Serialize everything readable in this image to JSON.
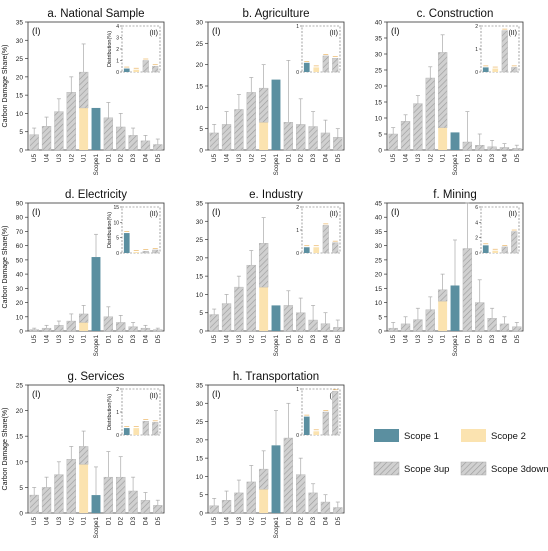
{
  "legend": {
    "items": [
      {
        "key": "scope1",
        "label": "Scope 1",
        "fill": "#5b8fa0",
        "hatched": false
      },
      {
        "key": "scope2",
        "label": "Scope 2",
        "fill": "#fbe3b0",
        "hatched": false
      },
      {
        "key": "scope3up",
        "label": "Scope 3up",
        "fill": "#d0d0d0",
        "hatched": true
      },
      {
        "key": "scope3down",
        "label": "Scope 3down",
        "fill": "#d0d0d0",
        "hatched": true
      }
    ]
  },
  "colors": {
    "scope1": "#5b8fa0",
    "scope2": "#fbe3b0",
    "scope3": "#d0d0d0",
    "hatch": "#9a9a9a",
    "error_bar": "#aaaaaa",
    "axis": "#333333"
  },
  "chart_data": [
    {
      "type": "bar",
      "title": "a. National Sample",
      "panel_label": "(I)",
      "ylabel": "Carbon Damage  Share(%)",
      "ylim": [
        0,
        35
      ],
      "yticks": [
        0,
        5,
        10,
        15,
        20,
        25,
        30,
        35
      ],
      "categories": [
        "U5",
        "U4",
        "U3",
        "U2",
        "U1",
        "Scope1",
        "D1",
        "D2",
        "D3",
        "D4",
        "D5"
      ],
      "series": [
        {
          "name": "Scope 1",
          "values": [
            0,
            0,
            0,
            0,
            0,
            11.5,
            0,
            0,
            0,
            0,
            0
          ]
        },
        {
          "name": "Scope 2",
          "values": [
            0,
            0,
            0,
            0,
            11.5,
            0,
            0,
            0,
            0,
            0,
            0
          ]
        },
        {
          "name": "Scope 3up",
          "values": [
            4.2,
            6.5,
            10.5,
            15.8,
            9.8,
            0,
            0,
            0,
            0,
            0,
            0
          ]
        },
        {
          "name": "Scope 3down",
          "values": [
            0,
            0,
            0,
            0,
            0,
            0,
            8.8,
            6.3,
            4.0,
            2.5,
            1.5
          ]
        }
      ],
      "error_upper": [
        6,
        9,
        14,
        20,
        29,
        0,
        13,
        10,
        6,
        4,
        3
      ],
      "inset": {
        "label": "(II)",
        "ylabel": "Distribution(%)",
        "ylim": [
          0,
          4
        ],
        "yticks": [
          0,
          1,
          2,
          3,
          4
        ],
        "categories": [
          "Scope 1",
          "Scope 2",
          "Scope 3up",
          "Scope 3down"
        ],
        "values": [
          0.3,
          0.2,
          1.0,
          0.5
        ]
      }
    },
    {
      "type": "bar",
      "title": "b. Agriculture",
      "panel_label": "(I)",
      "ylabel": "",
      "ylim": [
        0,
        30
      ],
      "yticks": [
        0,
        5,
        10,
        15,
        20,
        25,
        30
      ],
      "categories": [
        "U5",
        "U4",
        "U3",
        "U2",
        "U1",
        "Scope1",
        "D1",
        "D2",
        "D3",
        "D4",
        "D5"
      ],
      "series": [
        {
          "name": "Scope 1",
          "values": [
            0,
            0,
            0,
            0,
            0,
            16.5,
            0,
            0,
            0,
            0,
            0
          ]
        },
        {
          "name": "Scope 2",
          "values": [
            0,
            0,
            0,
            0,
            6.5,
            0,
            0,
            0,
            0,
            0,
            0
          ]
        },
        {
          "name": "Scope 3up",
          "values": [
            4,
            6,
            9.5,
            13.5,
            8,
            0,
            0,
            0,
            0,
            0,
            0
          ]
        },
        {
          "name": "Scope 3down",
          "values": [
            0,
            0,
            0,
            0,
            0,
            0,
            6.5,
            6,
            5.5,
            4,
            3
          ]
        }
      ],
      "error_upper": [
        6,
        9,
        13,
        17,
        20,
        0,
        21,
        12,
        9,
        7,
        5
      ],
      "inset": {
        "label": "(II)",
        "ylabel": "",
        "ylim": [
          0,
          1
        ],
        "yticks": [
          0,
          1
        ],
        "categories": [
          "Scope 1",
          "Scope 2",
          "Scope 3up",
          "Scope 3down"
        ],
        "values": [
          0.2,
          0.1,
          0.35,
          0.3
        ]
      }
    },
    {
      "type": "bar",
      "title": "c. Construction",
      "panel_label": "(I)",
      "ylabel": "",
      "ylim": [
        0,
        40
      ],
      "yticks": [
        0,
        5,
        10,
        15,
        20,
        25,
        30,
        35,
        40
      ],
      "categories": [
        "U5",
        "U4",
        "U3",
        "U2",
        "U1",
        "Scope1",
        "D1",
        "D2",
        "D3",
        "D4",
        "D5"
      ],
      "series": [
        {
          "name": "Scope 1",
          "values": [
            0,
            0,
            0,
            0,
            0,
            5.5,
            0,
            0,
            0,
            0,
            0
          ]
        },
        {
          "name": "Scope 2",
          "values": [
            0,
            0,
            0,
            0,
            7,
            0,
            0,
            0,
            0,
            0,
            0
          ]
        },
        {
          "name": "Scope 3up",
          "values": [
            5,
            9,
            14.5,
            22.5,
            23.5,
            0,
            0,
            0,
            0,
            0,
            0
          ]
        },
        {
          "name": "Scope 3down",
          "values": [
            0,
            0,
            0,
            0,
            0,
            0,
            2.5,
            1.5,
            1,
            0.8,
            0.5
          ]
        }
      ],
      "error_upper": [
        7,
        11,
        17,
        26,
        36,
        0,
        12,
        5,
        3,
        2,
        1.5
      ],
      "inset": {
        "label": "(II)",
        "ylabel": "",
        "ylim": [
          0,
          2
        ],
        "yticks": [
          0,
          1,
          2
        ],
        "categories": [
          "Scope 1",
          "Scope 2",
          "Scope 3up",
          "Scope 3down"
        ],
        "values": [
          0.2,
          0.15,
          1.8,
          0.2
        ]
      }
    },
    {
      "type": "bar",
      "title": "d. Electricity",
      "panel_label": "(I)",
      "ylabel": "Carbon Damage  Share(%)",
      "ylim": [
        0,
        90
      ],
      "yticks": [
        0,
        10,
        20,
        30,
        40,
        50,
        60,
        70,
        80,
        90
      ],
      "categories": [
        "U5",
        "U4",
        "U3",
        "U2",
        "U1",
        "Scope1",
        "D1",
        "D2",
        "D3",
        "D4",
        "D5"
      ],
      "series": [
        {
          "name": "Scope 1",
          "values": [
            0,
            0,
            0,
            0,
            0,
            52,
            0,
            0,
            0,
            0,
            0
          ]
        },
        {
          "name": "Scope 2",
          "values": [
            0,
            0,
            0,
            0,
            6,
            0,
            0,
            0,
            0,
            0,
            0
          ]
        },
        {
          "name": "Scope 3up",
          "values": [
            1,
            2,
            4,
            7,
            6,
            0,
            0,
            0,
            0,
            0,
            0
          ]
        },
        {
          "name": "Scope 3down",
          "values": [
            0,
            0,
            0,
            0,
            0,
            0,
            10,
            6,
            3,
            2,
            1
          ]
        }
      ],
      "error_upper": [
        2,
        4,
        7,
        12,
        18,
        68,
        17,
        11,
        6,
        4,
        2
      ],
      "inset": {
        "label": "(II)",
        "ylabel": "Distribution(%)",
        "ylim": [
          0,
          15
        ],
        "yticks": [
          0,
          5,
          10,
          15
        ],
        "categories": [
          "Scope 1",
          "Scope 2",
          "Scope 3up",
          "Scope 3down"
        ],
        "values": [
          6.5,
          0.3,
          0.6,
          1.0
        ]
      }
    },
    {
      "type": "bar",
      "title": "e. Industry",
      "panel_label": "(I)",
      "ylabel": "",
      "ylim": [
        0,
        35
      ],
      "yticks": [
        0,
        5,
        10,
        15,
        20,
        25,
        30,
        35
      ],
      "categories": [
        "U5",
        "U4",
        "U3",
        "U2",
        "U1",
        "Scope1",
        "D1",
        "D2",
        "D3",
        "D4",
        "D5"
      ],
      "series": [
        {
          "name": "Scope 1",
          "values": [
            0,
            0,
            0,
            0,
            0,
            7,
            0,
            0,
            0,
            0,
            0
          ]
        },
        {
          "name": "Scope 2",
          "values": [
            0,
            0,
            0,
            0,
            12,
            0,
            0,
            0,
            0,
            0,
            0
          ]
        },
        {
          "name": "Scope 3up",
          "values": [
            4.5,
            7.5,
            12,
            18,
            12,
            0,
            0,
            0,
            0,
            0,
            0
          ]
        },
        {
          "name": "Scope 3down",
          "values": [
            0,
            0,
            0,
            0,
            0,
            0,
            7,
            5,
            3,
            2,
            1
          ]
        }
      ],
      "error_upper": [
        6,
        10,
        15,
        22,
        31,
        0,
        11,
        9,
        7,
        5,
        3
      ],
      "inset": {
        "label": "(II)",
        "ylabel": "",
        "ylim": [
          0,
          2
        ],
        "yticks": [
          0,
          1,
          2
        ],
        "categories": [
          "Scope 1",
          "Scope 2",
          "Scope 3up",
          "Scope 3down"
        ],
        "values": [
          0.25,
          0.25,
          1.2,
          0.45
        ]
      }
    },
    {
      "type": "bar",
      "title": "f. Mining",
      "panel_label": "(I)",
      "ylabel": "",
      "ylim": [
        0,
        45
      ],
      "yticks": [
        0,
        5,
        10,
        15,
        20,
        25,
        30,
        35,
        40,
        45
      ],
      "categories": [
        "U5",
        "U4",
        "U3",
        "U2",
        "U1",
        "Scope1",
        "D1",
        "D2",
        "D3",
        "D4",
        "D5"
      ],
      "series": [
        {
          "name": "Scope 1",
          "values": [
            0,
            0,
            0,
            0,
            0,
            16,
            0,
            0,
            0,
            0,
            0
          ]
        },
        {
          "name": "Scope 2",
          "values": [
            0,
            0,
            0,
            0,
            10.5,
            0,
            0,
            0,
            0,
            0,
            0
          ]
        },
        {
          "name": "Scope 3up",
          "values": [
            1,
            2.5,
            4,
            7.5,
            4,
            0,
            0,
            0,
            0,
            0,
            0
          ]
        },
        {
          "name": "Scope 3down",
          "values": [
            0,
            0,
            0,
            0,
            0,
            0,
            29,
            10,
            4.5,
            2.5,
            1.5
          ]
        }
      ],
      "error_upper": [
        3,
        5,
        8,
        12,
        20,
        32,
        45,
        18,
        8,
        5,
        3
      ],
      "inset": {
        "label": "(II)",
        "ylabel": "",
        "ylim": [
          0,
          6
        ],
        "yticks": [
          0,
          2,
          4,
          6
        ],
        "categories": [
          "Scope 1",
          "Scope 2",
          "Scope 3up",
          "Scope 3down"
        ],
        "values": [
          1.0,
          0.3,
          0.8,
          2.8
        ]
      }
    },
    {
      "type": "bar",
      "title": "g. Services",
      "panel_label": "(I)",
      "ylabel": "Carbon Damage  Share(%)",
      "ylim": [
        0,
        25
      ],
      "yticks": [
        0,
        5,
        10,
        15,
        20,
        25
      ],
      "categories": [
        "U5",
        "U4",
        "U3",
        "U2",
        "U1",
        "Scope1",
        "D1",
        "D2",
        "D3",
        "D4",
        "D5"
      ],
      "series": [
        {
          "name": "Scope 1",
          "values": [
            0,
            0,
            0,
            0,
            0,
            3.5,
            0,
            0,
            0,
            0,
            0
          ]
        },
        {
          "name": "Scope 2",
          "values": [
            0,
            0,
            0,
            0,
            9.5,
            0,
            0,
            0,
            0,
            0,
            0
          ]
        },
        {
          "name": "Scope 3up",
          "values": [
            3.5,
            5,
            7.5,
            10.5,
            3.5,
            0,
            0,
            0,
            0,
            0,
            0
          ]
        },
        {
          "name": "Scope 3down",
          "values": [
            0,
            0,
            0,
            0,
            0,
            0,
            7,
            7,
            4.3,
            2.5,
            1.5
          ]
        }
      ],
      "error_upper": [
        5,
        7,
        10,
        13,
        16,
        9,
        12,
        11,
        7,
        4,
        2.5
      ],
      "inset": {
        "label": "(II)",
        "ylabel": "Distribution(%)",
        "ylim": [
          0,
          2
        ],
        "yticks": [
          0,
          1,
          2
        ],
        "categories": [
          "Scope 1",
          "Scope 2",
          "Scope 3up",
          "Scope 3down"
        ],
        "values": [
          0.3,
          0.3,
          0.6,
          0.55
        ]
      }
    },
    {
      "type": "bar",
      "title": "h. Transportation",
      "panel_label": "(I)",
      "ylabel": "",
      "ylim": [
        0,
        35
      ],
      "yticks": [
        0,
        5,
        10,
        15,
        20,
        25,
        30,
        35
      ],
      "categories": [
        "U5",
        "U4",
        "U3",
        "U2",
        "U1",
        "Scope1",
        "D1",
        "D2",
        "D3",
        "D4",
        "D5"
      ],
      "series": [
        {
          "name": "Scope 1",
          "values": [
            0,
            0,
            0,
            0,
            0,
            18.5,
            0,
            0,
            0,
            0,
            0
          ]
        },
        {
          "name": "Scope 2",
          "values": [
            0,
            0,
            0,
            0,
            6.5,
            0,
            0,
            0,
            0,
            0,
            0
          ]
        },
        {
          "name": "Scope 3up",
          "values": [
            2,
            3.5,
            5.5,
            8.5,
            5.5,
            0,
            0,
            0,
            0,
            0,
            0
          ]
        },
        {
          "name": "Scope 3down",
          "values": [
            0,
            0,
            0,
            0,
            0,
            0,
            20.5,
            10.5,
            5.5,
            3,
            1.5
          ]
        }
      ],
      "error_upper": [
        4,
        6,
        9,
        13,
        17,
        28,
        30,
        15,
        8,
        5,
        3
      ],
      "inset": {
        "label": "(II)",
        "ylabel": "",
        "ylim": [
          0,
          1
        ],
        "yticks": [
          0,
          1
        ],
        "categories": [
          "Scope 1",
          "Scope 2",
          "Scope 3up",
          "Scope 3down"
        ],
        "values": [
          0.4,
          0.08,
          0.5,
          0.95
        ]
      }
    }
  ]
}
